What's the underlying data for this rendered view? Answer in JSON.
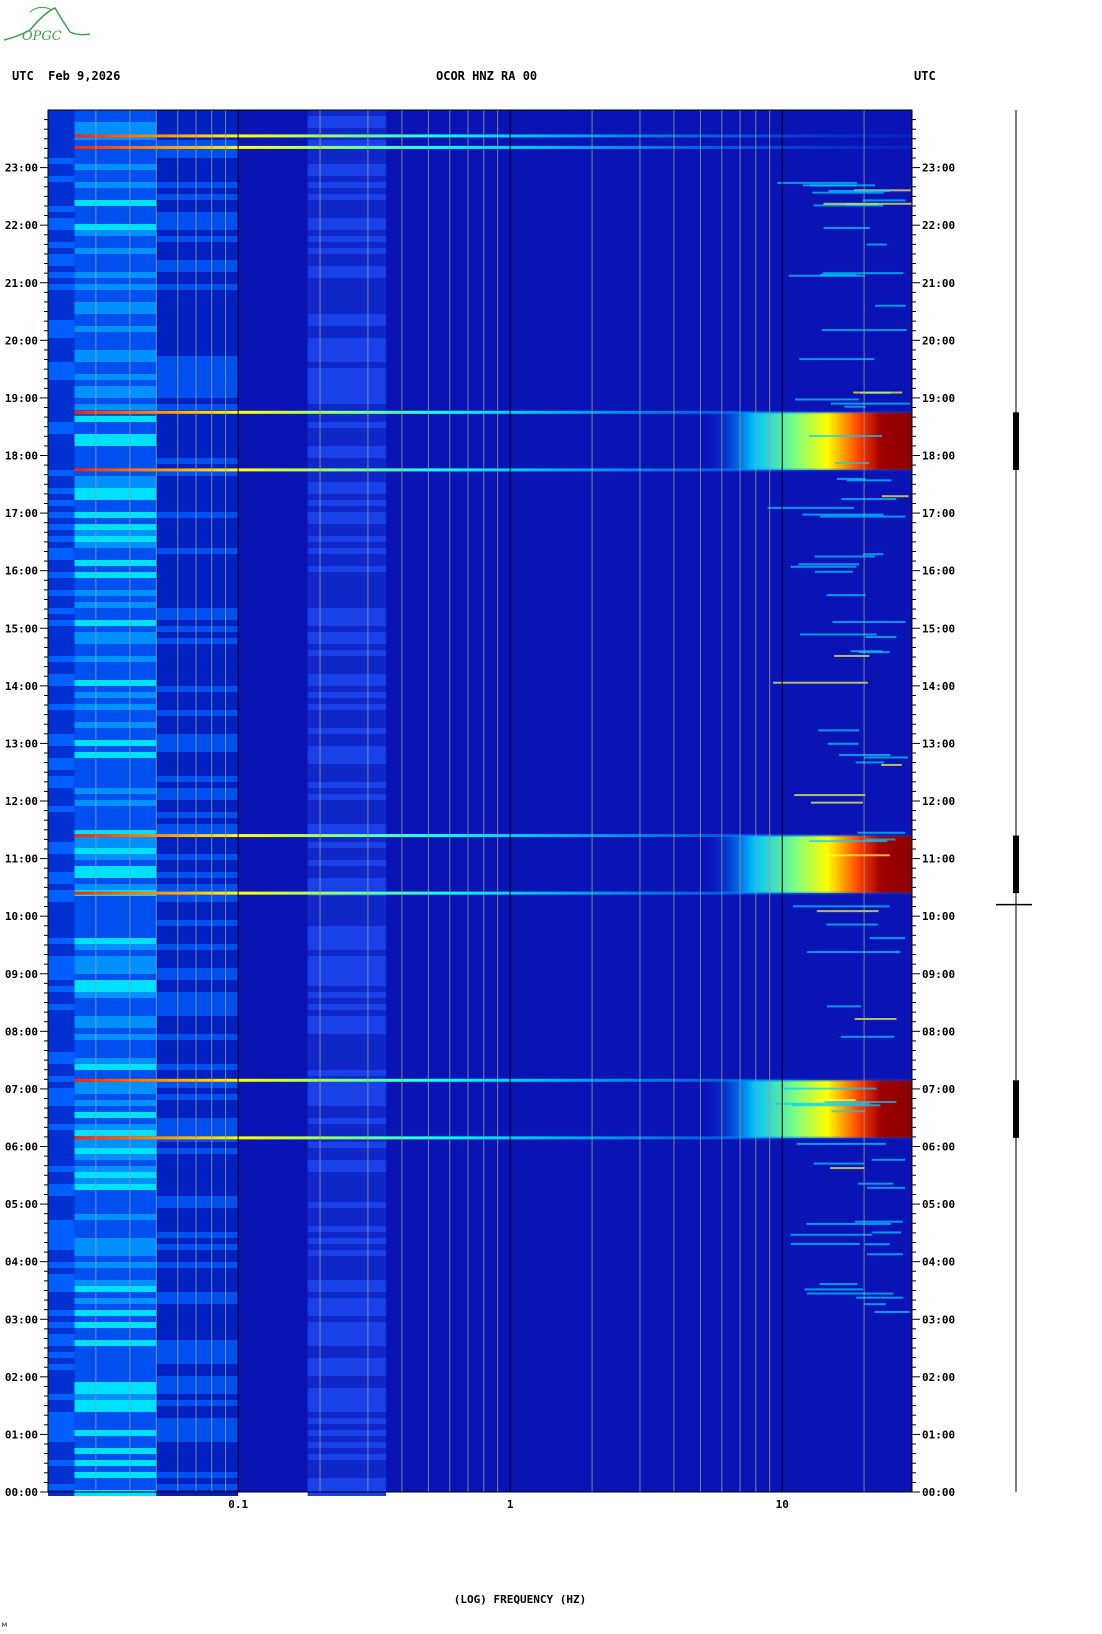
{
  "header": {
    "utc_date_label": "UTC  Feb 9,2026",
    "station_label": "OCOR HNZ RA 00",
    "utc_right_label": "UTC"
  },
  "logo": {
    "text": "OPGC",
    "color": "#3aa04a"
  },
  "chart_data": {
    "type": "heatmap",
    "title": "OCOR HNZ RA 00",
    "xlabel": "(LOG) FREQUENCY (HZ)",
    "ylabel": "UTC",
    "x_scale": "log",
    "x_range": [
      0.02,
      30
    ],
    "x_tick_labels": [
      {
        "value": 0.1,
        "label": "0.1"
      },
      {
        "value": 1,
        "label": "1"
      },
      {
        "value": 10,
        "label": "10"
      }
    ],
    "x_gridlines": [
      0.03,
      0.04,
      0.05,
      0.06,
      0.07,
      0.08,
      0.09,
      0.1,
      0.2,
      0.3,
      0.4,
      0.5,
      0.6,
      0.7,
      0.8,
      0.9,
      1,
      2,
      3,
      4,
      5,
      6,
      7,
      8,
      9,
      10,
      20,
      30
    ],
    "y_range_hours": [
      0,
      24
    ],
    "y_tick_labels": [
      "00:00",
      "01:00",
      "02:00",
      "03:00",
      "04:00",
      "05:00",
      "06:00",
      "07:00",
      "08:00",
      "09:00",
      "10:00",
      "11:00",
      "12:00",
      "13:00",
      "14:00",
      "15:00",
      "16:00",
      "17:00",
      "18:00",
      "19:00",
      "20:00",
      "21:00",
      "22:00",
      "23:00"
    ],
    "colormap": [
      "#00008b",
      "#0000ff",
      "#00bfff",
      "#00ffff",
      "#7fff7f",
      "#ffff00",
      "#ff7f00",
      "#ff0000",
      "#8b0000"
    ],
    "high_freq_energy_events": [
      {
        "start_hour": 6.15,
        "end_hour": 7.15
      },
      {
        "start_hour": 10.4,
        "end_hour": 11.4
      },
      {
        "start_hour": 17.75,
        "end_hour": 18.75
      }
    ],
    "broadband_lines_hours": [
      6.15,
      7.15,
      10.4,
      11.4,
      17.75,
      18.75,
      23.35,
      23.55
    ],
    "grid": true
  },
  "footer": {
    "corner_mark": "м"
  }
}
